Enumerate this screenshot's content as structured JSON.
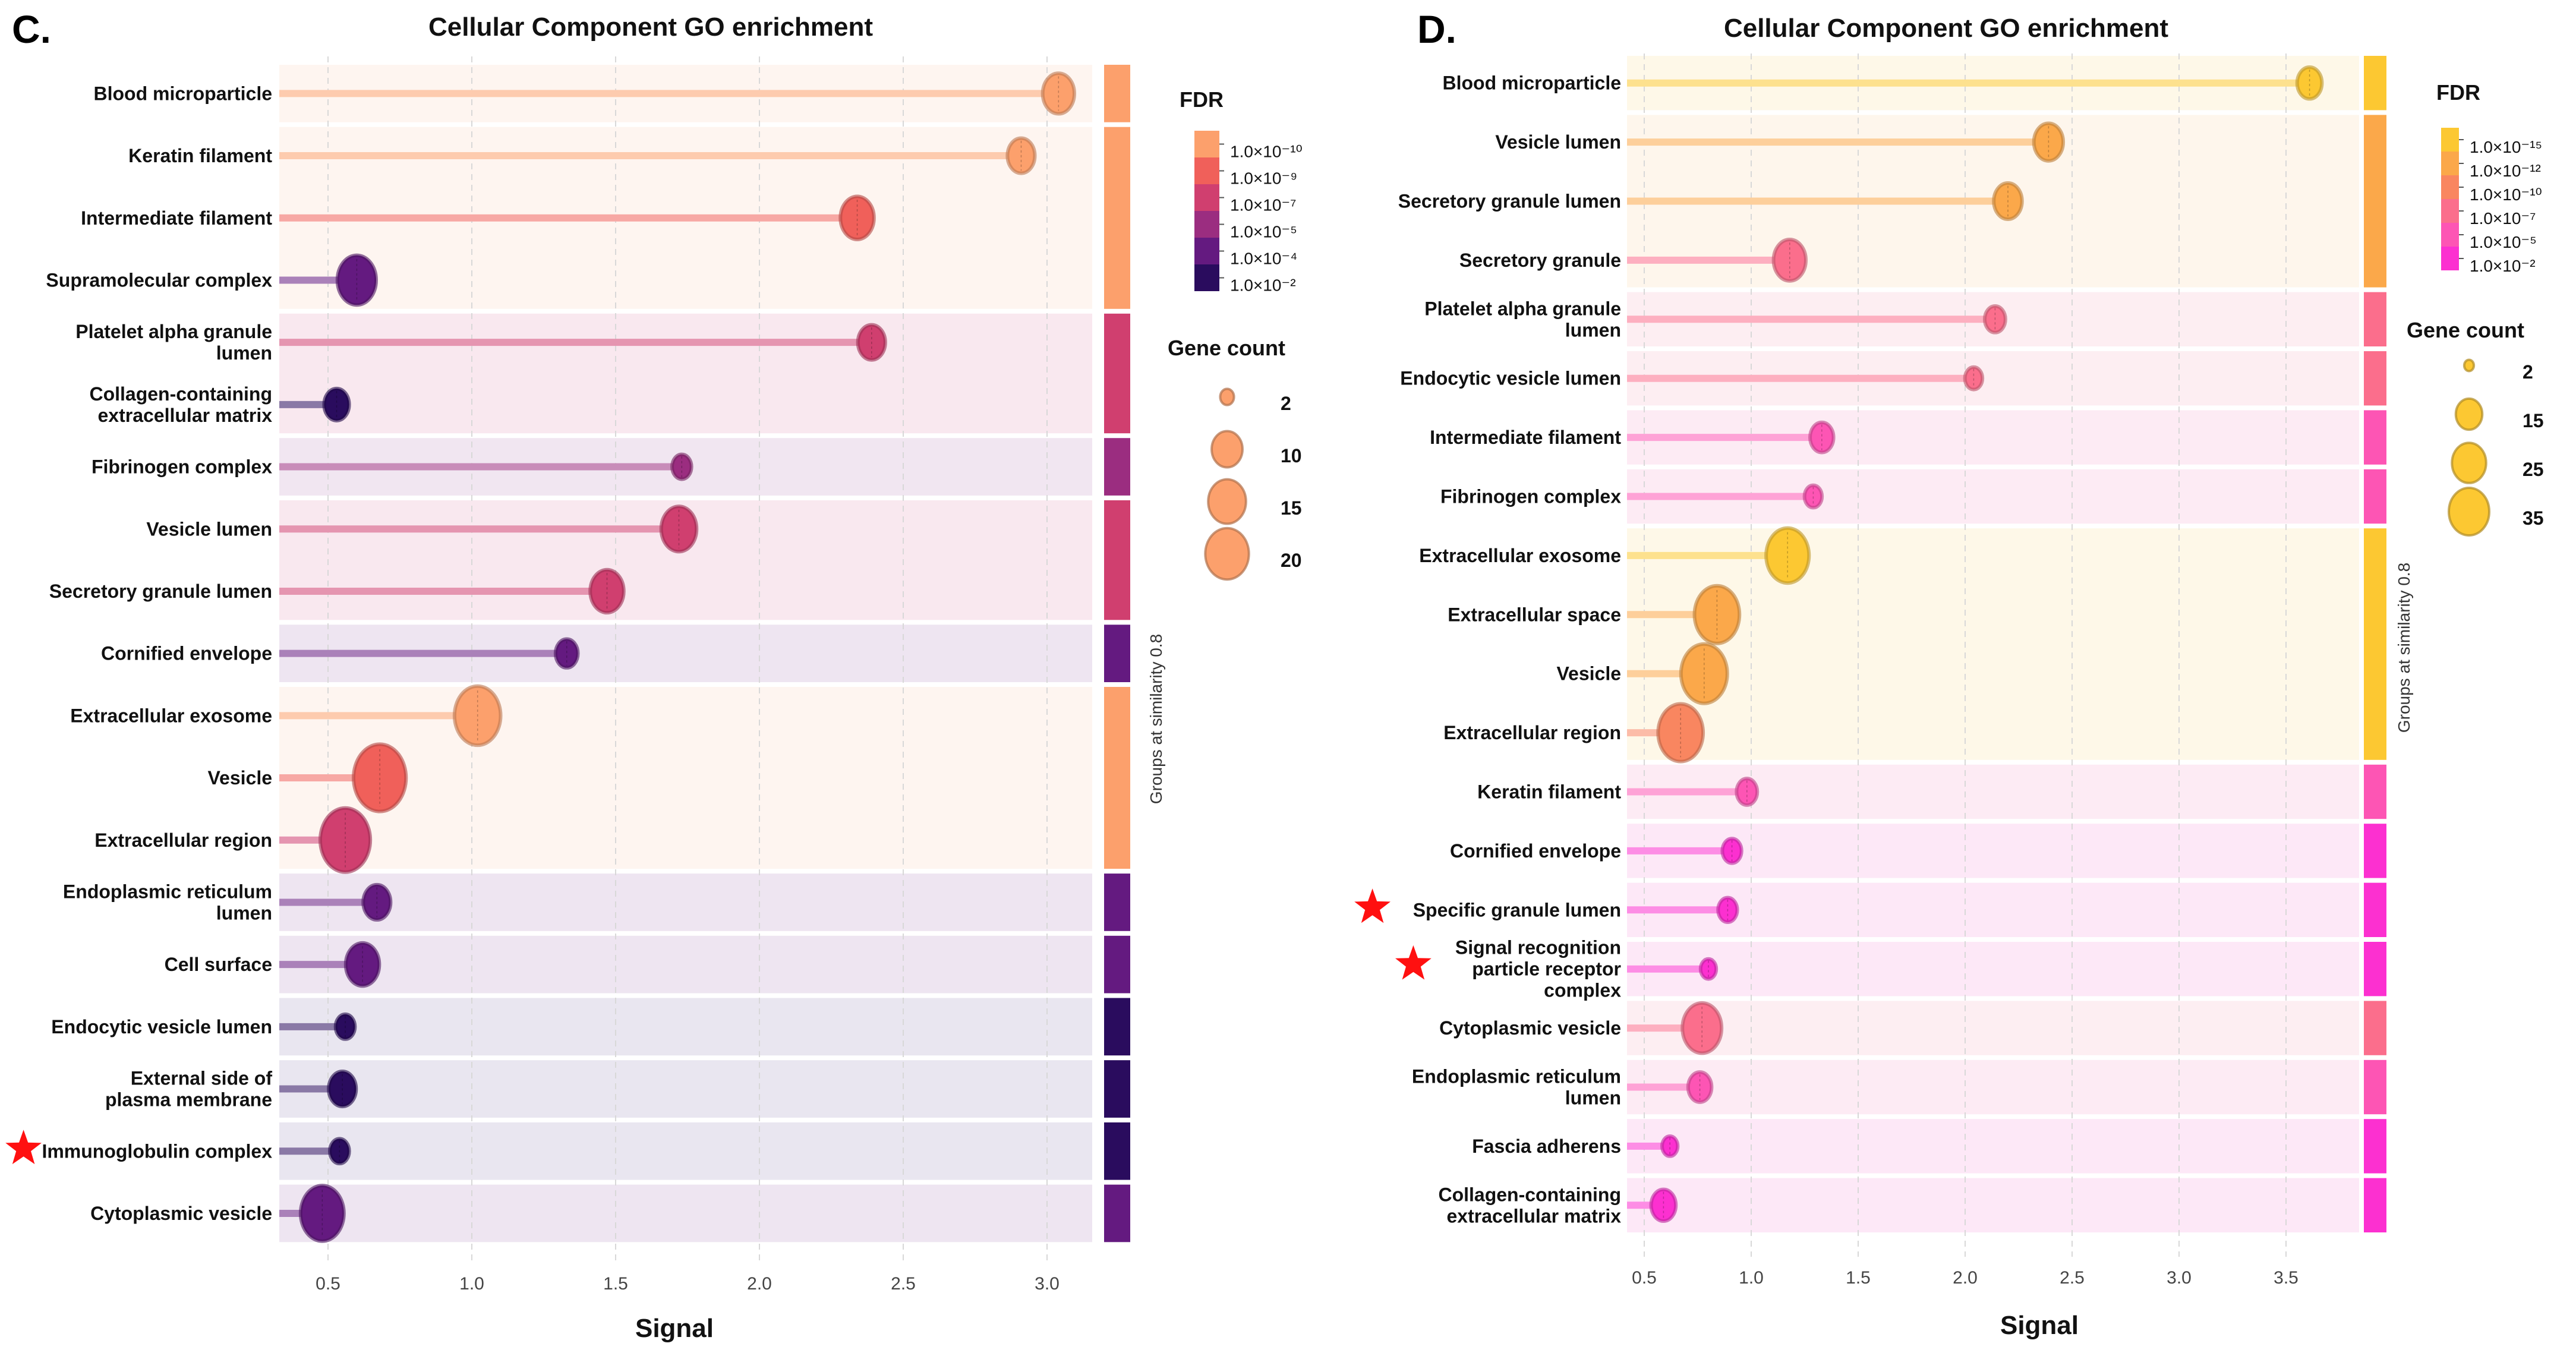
{
  "chart_data": [
    {
      "type": "lollipop",
      "panel_label": "C.",
      "title": "Cellular Component GO enrichment",
      "xlabel": "Signal",
      "ylabel": "",
      "xlim": [
        0.33,
        3.2
      ],
      "xticks": [
        0.5,
        1.0,
        1.5,
        2.0,
        2.5,
        3.0
      ],
      "xtick_labels": [
        "0.5",
        "1.0",
        "1.5",
        "2.0",
        "2.5",
        "3.0"
      ],
      "grid": "vertical-dashed",
      "group_axis_label": "Groups at similarity 0.8",
      "fdr_legend": {
        "title": "FDR",
        "labels": [
          "1.0×10⁻¹⁰",
          "1.0×10⁻⁹",
          "1.0×10⁻⁷",
          "1.0×10⁻⁵",
          "1.0×10⁻⁴",
          "1.0×10⁻²"
        ],
        "colors": [
          "#fca06c",
          "#f0605a",
          "#d03f6f",
          "#9b2d80",
          "#641a80",
          "#2a0c5e"
        ]
      },
      "size_legend": {
        "title": "Gene count",
        "values": [
          2,
          10,
          15,
          20
        ],
        "color": "#fca06c",
        "max": 20
      },
      "rows": [
        {
          "term": "Blood microparticle",
          "signal": 3.04,
          "fdr_level": 0,
          "count": 8,
          "group": 0,
          "starred": false
        },
        {
          "term": "Keratin filament",
          "signal": 2.91,
          "fdr_level": 0,
          "count": 6,
          "group": 1,
          "starred": false
        },
        {
          "term": "Intermediate filament",
          "signal": 2.34,
          "fdr_level": 1,
          "count": 9,
          "group": 1,
          "starred": false
        },
        {
          "term": "Supramolecular complex",
          "signal": 0.6,
          "fdr_level": 4,
          "count": 12,
          "group": 1,
          "starred": false
        },
        {
          "term": "Platelet alpha granule lumen",
          "signal": 2.39,
          "fdr_level": 2,
          "count": 6,
          "group": 2,
          "starred": false
        },
        {
          "term": "Collagen-containing extracellular matrix",
          "signal": 0.53,
          "fdr_level": 5,
          "count": 5,
          "group": 2,
          "starred": false
        },
        {
          "term": "Fibrinogen complex",
          "signal": 1.73,
          "fdr_level": 3,
          "count": 3,
          "group": 3,
          "starred": false
        },
        {
          "term": "Vesicle lumen",
          "signal": 1.72,
          "fdr_level": 2,
          "count": 10,
          "group": 4,
          "starred": false
        },
        {
          "term": "Secretory granule lumen",
          "signal": 1.47,
          "fdr_level": 2,
          "count": 9,
          "group": 4,
          "starred": false
        },
        {
          "term": "Cornified envelope",
          "signal": 1.33,
          "fdr_level": 4,
          "count": 4,
          "group": 5,
          "starred": false
        },
        {
          "term": "Extracellular exosome",
          "signal": 1.02,
          "fdr_level": 0,
          "count": 17,
          "group": 6,
          "starred": false
        },
        {
          "term": "Vesicle",
          "signal": 0.68,
          "fdr_level": 1,
          "count": 22,
          "group": 6,
          "starred": false
        },
        {
          "term": "Extracellular region",
          "signal": 0.56,
          "fdr_level": 2,
          "count": 20,
          "group": 6,
          "starred": false
        },
        {
          "term": "Endoplasmic reticulum lumen",
          "signal": 0.67,
          "fdr_level": 4,
          "count": 6,
          "group": 7,
          "starred": false
        },
        {
          "term": "Cell surface",
          "signal": 0.62,
          "fdr_level": 4,
          "count": 9,
          "group": 8,
          "starred": false
        },
        {
          "term": "Endocytic vesicle lumen",
          "signal": 0.56,
          "fdr_level": 5,
          "count": 3,
          "group": 9,
          "starred": false
        },
        {
          "term": "External side of plasma membrane",
          "signal": 0.55,
          "fdr_level": 5,
          "count": 6,
          "group": 10,
          "starred": false
        },
        {
          "term": "Immunoglobulin complex",
          "signal": 0.54,
          "fdr_level": 5,
          "count": 3,
          "group": 11,
          "starred": true
        },
        {
          "term": "Cytoplasmic vesicle",
          "signal": 0.48,
          "fdr_level": 4,
          "count": 15,
          "group": 12,
          "starred": false
        }
      ],
      "group_colors": [
        "#fca06c",
        "#fca06c",
        "#d03f6f",
        "#9b2d80",
        "#d03f6f",
        "#641a80",
        "#fca06c",
        "#641a80",
        "#641a80",
        "#2a0c5e",
        "#2a0c5e",
        "#2a0c5e",
        "#641a80"
      ],
      "group_band_colors": [
        "#fef5f0",
        "#fef5f0",
        "#f9e8ef",
        "#f1e6f1",
        "#f9e8ef",
        "#eee5f1",
        "#fef5f0",
        "#eee5f1",
        "#eee5f1",
        "#e9e6f0",
        "#e9e6f0",
        "#e9e6f0",
        "#eee5f1"
      ]
    },
    {
      "type": "lollipop",
      "panel_label": "D.",
      "title": "Cellular Component GO enrichment",
      "xlabel": "Signal",
      "ylabel": "",
      "xlim": [
        0.4,
        3.85
      ],
      "xticks": [
        0.5,
        1.0,
        1.5,
        2.0,
        2.5,
        3.0,
        3.5
      ],
      "xtick_labels": [
        "0.5",
        "1.0",
        "1.5",
        "2.0",
        "2.5",
        "3.0",
        "3.5"
      ],
      "grid": "vertical-dashed",
      "group_axis_label": "Groups at similarity 0.8",
      "fdr_legend": {
        "title": "FDR",
        "labels": [
          "1.0×10⁻¹⁵",
          "1.0×10⁻¹²",
          "1.0×10⁻¹⁰",
          "1.0×10⁻⁷",
          "1.0×10⁻⁵",
          "1.0×10⁻²"
        ],
        "colors": [
          "#fcc832",
          "#fba84a",
          "#f98660",
          "#fb6e8c",
          "#fd55b4",
          "#fc30d0"
        ]
      },
      "size_legend": {
        "title": "Gene count",
        "values": [
          2,
          15,
          25,
          35
        ],
        "color": "#fcc832",
        "max": 35
      },
      "rows": [
        {
          "term": "Blood microparticle",
          "signal": 3.61,
          "fdr_level": 0,
          "count": 10,
          "group": 0,
          "starred": false
        },
        {
          "term": "Vesicle lumen",
          "signal": 2.39,
          "fdr_level": 1,
          "count": 14,
          "group": 1,
          "starred": false
        },
        {
          "term": "Secretory granule lumen",
          "signal": 2.2,
          "fdr_level": 1,
          "count": 13,
          "group": 1,
          "starred": false
        },
        {
          "term": "Secretory granule",
          "signal": 1.18,
          "fdr_level": 3,
          "count": 17,
          "group": 1,
          "starred": false
        },
        {
          "term": "Platelet alpha granule lumen",
          "signal": 2.14,
          "fdr_level": 3,
          "count": 7,
          "group": 2,
          "starred": false
        },
        {
          "term": "Endocytic vesicle lumen",
          "signal": 2.04,
          "fdr_level": 3,
          "count": 5,
          "group": 3,
          "starred": false
        },
        {
          "term": "Intermediate filament",
          "signal": 1.33,
          "fdr_level": 4,
          "count": 9,
          "group": 4,
          "starred": false
        },
        {
          "term": "Fibrinogen complex",
          "signal": 1.29,
          "fdr_level": 4,
          "count": 5,
          "group": 5,
          "starred": false
        },
        {
          "term": "Extracellular exosome",
          "signal": 1.17,
          "fdr_level": 0,
          "count": 30,
          "group": 6,
          "starred": false
        },
        {
          "term": "Extracellular space",
          "signal": 0.84,
          "fdr_level": 1,
          "count": 33,
          "group": 6,
          "starred": false
        },
        {
          "term": "Vesicle",
          "signal": 0.78,
          "fdr_level": 1,
          "count": 35,
          "group": 6,
          "starred": false
        },
        {
          "term": "Extracellular region",
          "signal": 0.67,
          "fdr_level": 2,
          "count": 33,
          "group": 6,
          "starred": false
        },
        {
          "term": "Keratin filament",
          "signal": 0.98,
          "fdr_level": 4,
          "count": 7,
          "group": 7,
          "starred": false
        },
        {
          "term": "Cornified envelope",
          "signal": 0.91,
          "fdr_level": 5,
          "count": 6,
          "group": 8,
          "starred": false
        },
        {
          "term": "Specific granule lumen",
          "signal": 0.89,
          "fdr_level": 5,
          "count": 6,
          "group": 9,
          "starred": true
        },
        {
          "term": "Signal recognition particle receptor complex",
          "signal": 0.8,
          "fdr_level": 5,
          "count": 4,
          "group": 10,
          "starred": true
        },
        {
          "term": "Cytoplasmic vesicle",
          "signal": 0.77,
          "fdr_level": 3,
          "count": 25,
          "group": 11,
          "starred": false
        },
        {
          "term": "Endoplasmic reticulum lumen",
          "signal": 0.76,
          "fdr_level": 4,
          "count": 9,
          "group": 12,
          "starred": false
        },
        {
          "term": "Fascia adherens",
          "signal": 0.62,
          "fdr_level": 5,
          "count": 4,
          "group": 13,
          "starred": false
        },
        {
          "term": "Collagen-containing extracellular matrix",
          "signal": 0.59,
          "fdr_level": 5,
          "count": 10,
          "group": 14,
          "starred": false
        }
      ],
      "group_colors": [
        "#fcc832",
        "#fba84a",
        "#fb6e8c",
        "#fb6e8c",
        "#fd55b4",
        "#fd55b4",
        "#fcc832",
        "#fd55b4",
        "#fc30d0",
        "#fc30d0",
        "#fc30d0",
        "#fb6e8c",
        "#fd55b4",
        "#fc30d0",
        "#fc30d0"
      ],
      "group_band_colors": [
        "#fef8e8",
        "#fef6ec",
        "#fdeef2",
        "#fdeef2",
        "#fdebf4",
        "#fdebf4",
        "#fef8e8",
        "#fdebf4",
        "#fde8f7",
        "#fde8f7",
        "#fde8f7",
        "#fdeef2",
        "#fdebf4",
        "#fde8f7",
        "#fde8f7"
      ]
    }
  ]
}
